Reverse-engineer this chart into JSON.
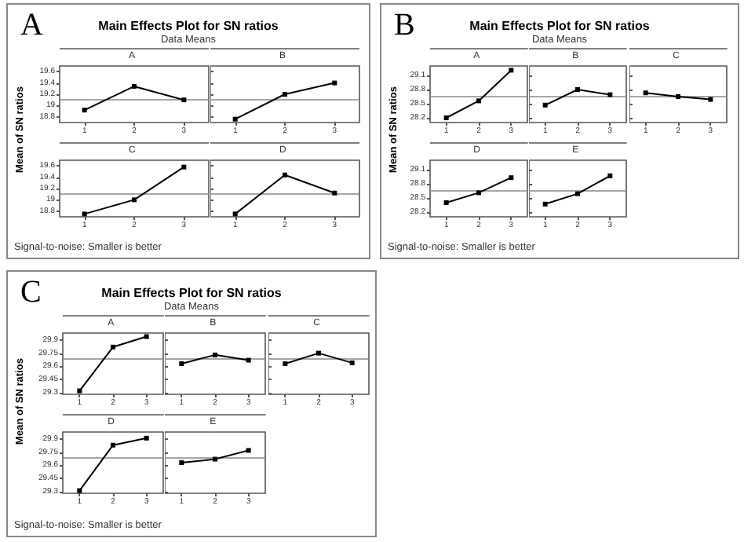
{
  "chart_data": [
    {
      "type": "other",
      "title": "Main Effects Plot for SN ratios",
      "subtitle": "Data Means",
      "ylabel": "Mean of SN ratios",
      "annotations": [
        "A",
        "Signal-to-noise: Smaller is better"
      ]
    },
    {
      "type": "line",
      "title": "A",
      "categories": [
        "1",
        "2",
        "3"
      ],
      "series": [
        {
          "color": "#000000",
          "values": [
            18.92,
            19.34,
            19.1
          ]
        }
      ],
      "ylim": [
        18.7,
        19.7
      ],
      "yticks": [
        18.8,
        19.0,
        19.2,
        19.4,
        19.6
      ],
      "ref_lines": [
        {
          "axis": "y",
          "value": 19.1,
          "color": "#888888"
        }
      ],
      "marker": "square",
      "grid": false
    },
    {
      "type": "line",
      "title": "B",
      "categories": [
        "1",
        "2",
        "3"
      ],
      "series": [
        {
          "color": "#000000",
          "values": [
            18.76,
            19.2,
            19.4
          ]
        }
      ],
      "ylim": [
        18.7,
        19.7
      ],
      "yticks": [
        18.8,
        19.0,
        19.2,
        19.4,
        19.6
      ],
      "ref_lines": [
        {
          "axis": "y",
          "value": 19.1,
          "color": "#888888"
        }
      ],
      "marker": "square",
      "grid": false,
      "tick_labels": "x"
    },
    {
      "type": "line",
      "title": "C",
      "categories": [
        "1",
        "2",
        "3"
      ],
      "series": [
        {
          "color": "#000000",
          "values": [
            18.75,
            19.0,
            19.58
          ]
        }
      ],
      "ylim": [
        18.7,
        19.7
      ],
      "yticks": [
        18.8,
        19.0,
        19.2,
        19.4,
        19.6
      ],
      "ref_lines": [
        {
          "axis": "y",
          "value": 19.1,
          "color": "#888888"
        }
      ],
      "marker": "square",
      "grid": false
    },
    {
      "type": "line",
      "title": "D",
      "categories": [
        "1",
        "2",
        "3"
      ],
      "series": [
        {
          "color": "#000000",
          "values": [
            18.75,
            19.44,
            19.12
          ]
        }
      ],
      "ylim": [
        18.7,
        19.7
      ],
      "yticks": [
        18.8,
        19.0,
        19.2,
        19.4,
        19.6
      ],
      "ref_lines": [
        {
          "axis": "y",
          "value": 19.1,
          "color": "#888888"
        }
      ],
      "marker": "square",
      "grid": false,
      "tick_labels": "x"
    },
    {
      "type": "other",
      "title": "Main Effects Plot for SN ratios",
      "subtitle": "Data Means",
      "ylabel": "Mean of SN ratios",
      "annotations": [
        "B",
        "Signal-to-noise: Smaller is better"
      ]
    },
    {
      "type": "line",
      "title": "A",
      "categories": [
        "1",
        "2",
        "3"
      ],
      "series": [
        {
          "color": "#000000",
          "values": [
            28.2,
            28.56,
            29.21
          ]
        }
      ],
      "ylim": [
        28.1,
        29.3
      ],
      "yticks": [
        28.2,
        28.5,
        28.8,
        29.1
      ],
      "ref_lines": [
        {
          "axis": "y",
          "value": 28.65,
          "color": "#888888"
        }
      ],
      "marker": "square",
      "grid": false
    },
    {
      "type": "line",
      "title": "B",
      "categories": [
        "1",
        "2",
        "3"
      ],
      "series": [
        {
          "color": "#000000",
          "values": [
            28.47,
            28.8,
            28.69
          ]
        }
      ],
      "ylim": [
        28.1,
        29.3
      ],
      "yticks": [
        28.2,
        28.5,
        28.8,
        29.1
      ],
      "ref_lines": [
        {
          "axis": "y",
          "value": 28.65,
          "color": "#888888"
        }
      ],
      "marker": "square",
      "grid": false,
      "tick_labels": "x"
    },
    {
      "type": "line",
      "title": "C",
      "categories": [
        "1",
        "2",
        "3"
      ],
      "series": [
        {
          "color": "#000000",
          "values": [
            28.73,
            28.65,
            28.59
          ]
        }
      ],
      "ylim": [
        28.1,
        29.3
      ],
      "yticks": [
        28.2,
        28.5,
        28.8,
        29.1
      ],
      "ref_lines": [
        {
          "axis": "y",
          "value": 28.65,
          "color": "#888888"
        }
      ],
      "marker": "square",
      "grid": false,
      "tick_labels": "x"
    },
    {
      "type": "line",
      "title": "D",
      "categories": [
        "1",
        "2",
        "3"
      ],
      "series": [
        {
          "color": "#000000",
          "values": [
            28.4,
            28.61,
            28.93
          ]
        }
      ],
      "ylim": [
        28.1,
        29.3
      ],
      "yticks": [
        28.2,
        28.5,
        28.8,
        29.1
      ],
      "ref_lines": [
        {
          "axis": "y",
          "value": 28.65,
          "color": "#888888"
        }
      ],
      "marker": "square",
      "grid": false
    },
    {
      "type": "line",
      "title": "E",
      "categories": [
        "1",
        "2",
        "3"
      ],
      "series": [
        {
          "color": "#000000",
          "values": [
            28.37,
            28.59,
            28.97
          ]
        }
      ],
      "ylim": [
        28.1,
        29.3
      ],
      "yticks": [
        28.2,
        28.5,
        28.8,
        29.1
      ],
      "ref_lines": [
        {
          "axis": "y",
          "value": 28.65,
          "color": "#888888"
        }
      ],
      "marker": "square",
      "grid": false,
      "tick_labels": "x"
    },
    {
      "type": "other",
      "title": "Main Effects Plot for SN ratios",
      "subtitle": "Data Means",
      "ylabel": "Mean of SN ratios",
      "annotations": [
        "C",
        "Signal-to-noise: Smaller is better"
      ]
    },
    {
      "type": "line",
      "title": "A",
      "categories": [
        "1",
        "2",
        "3"
      ],
      "series": [
        {
          "color": "#000000",
          "values": [
            29.32,
            29.82,
            29.94
          ]
        }
      ],
      "ylim": [
        29.28,
        29.98
      ],
      "yticks": [
        29.3,
        29.45,
        29.6,
        29.75,
        29.9
      ],
      "ref_lines": [
        {
          "axis": "y",
          "value": 29.69,
          "color": "#888888"
        }
      ],
      "marker": "square",
      "grid": false
    },
    {
      "type": "line",
      "title": "B",
      "categories": [
        "1",
        "2",
        "3"
      ],
      "series": [
        {
          "color": "#000000",
          "values": [
            29.63,
            29.73,
            29.67
          ]
        }
      ],
      "ylim": [
        29.28,
        29.98
      ],
      "yticks": [
        29.3,
        29.45,
        29.6,
        29.75,
        29.9
      ],
      "ref_lines": [
        {
          "axis": "y",
          "value": 29.69,
          "color": "#888888"
        }
      ],
      "marker": "square",
      "grid": false,
      "tick_labels": "x"
    },
    {
      "type": "line",
      "title": "C",
      "categories": [
        "1",
        "2",
        "3"
      ],
      "series": [
        {
          "color": "#000000",
          "values": [
            29.63,
            29.75,
            29.64
          ]
        }
      ],
      "ylim": [
        29.28,
        29.98
      ],
      "yticks": [
        29.3,
        29.45,
        29.6,
        29.75,
        29.9
      ],
      "ref_lines": [
        {
          "axis": "y",
          "value": 29.69,
          "color": "#888888"
        }
      ],
      "marker": "square",
      "grid": false,
      "tick_labels": "x"
    },
    {
      "type": "line",
      "title": "D",
      "categories": [
        "1",
        "2",
        "3"
      ],
      "series": [
        {
          "color": "#000000",
          "values": [
            29.31,
            29.83,
            29.91
          ]
        }
      ],
      "ylim": [
        29.28,
        29.98
      ],
      "yticks": [
        29.3,
        29.45,
        29.6,
        29.75,
        29.9
      ],
      "ref_lines": [
        {
          "axis": "y",
          "value": 29.69,
          "color": "#888888"
        }
      ],
      "marker": "square",
      "grid": false
    },
    {
      "type": "line",
      "title": "E",
      "categories": [
        "1",
        "2",
        "3"
      ],
      "series": [
        {
          "color": "#000000",
          "values": [
            29.63,
            29.67,
            29.77
          ]
        }
      ],
      "ylim": [
        29.28,
        29.98
      ],
      "yticks": [
        29.3,
        29.45,
        29.6,
        29.75,
        29.9
      ],
      "ref_lines": [
        {
          "axis": "y",
          "value": 29.69,
          "color": "#888888"
        }
      ],
      "marker": "square",
      "grid": false,
      "tick_labels": "x"
    }
  ]
}
